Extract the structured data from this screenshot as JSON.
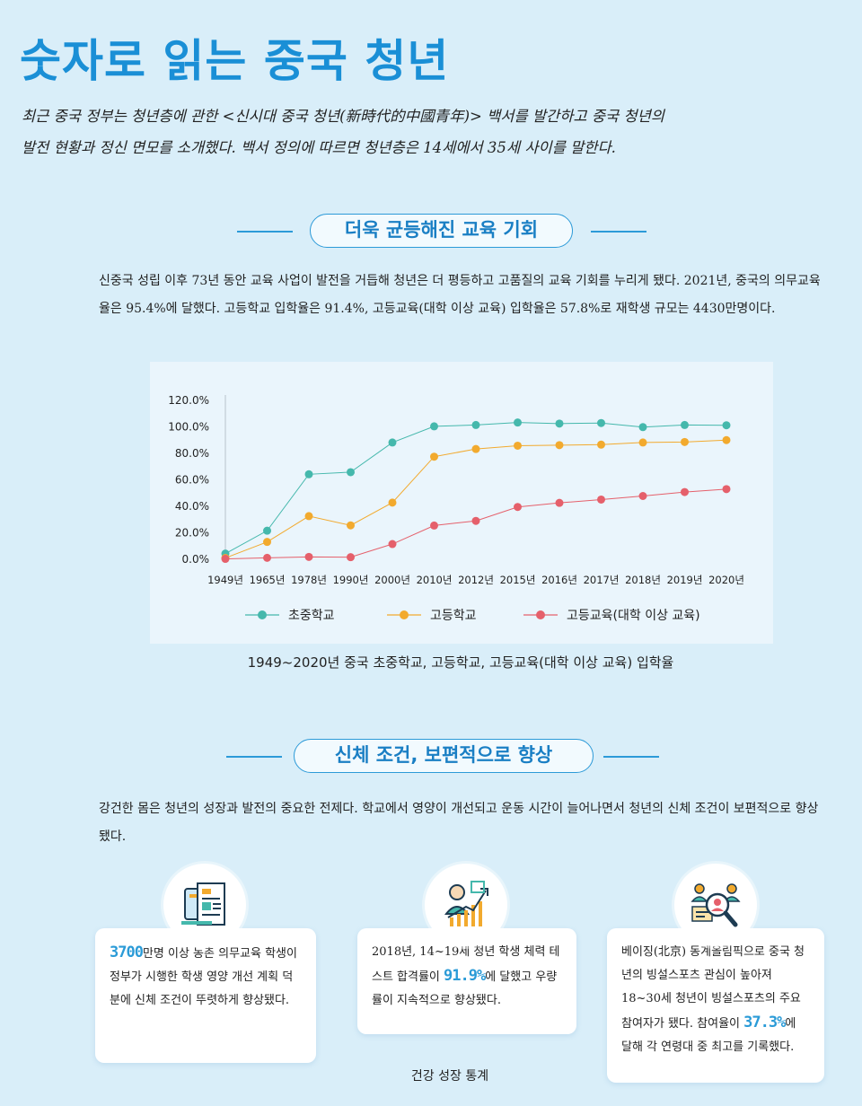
{
  "title": "숫자로 읽는 중국 청년",
  "intro": {
    "line1": "최근 중국 정부는 청년층에 관한 <신시대 중국 청년(新時代的中國青年)> 백서를 발간하고 중국 청년의",
    "line2": "발전 현황과 정신 면모를 소개했다. 백서 정의에 따르면 청년층은 14세에서 35세 사이를 말한다."
  },
  "section1": {
    "heading": "더욱 균등해진 교육 기회",
    "body": "신중국 성립 이후 73년 동안 교육 사업이 발전을 거듭해 청년은 더 평등하고 고품질의 교육 기회를 누리게 됐다. 2021년, 중국의 의무교육율은 95.4%에 달했다. 고등학교 입학율은 91.4%, 고등교육(대학 이상 교육) 입학율은 57.8%로 재학생 규모는 4430만명이다.",
    "caption": "1949~2020년 중국 초중학교, 고등학교, 고등교육(대학 이상 교육) 입학율"
  },
  "chart_data": {
    "type": "line",
    "categories": [
      "1949년",
      "1965년",
      "1978년",
      "1990년",
      "2000년",
      "2010년",
      "2012년",
      "2015년",
      "2016년",
      "2017년",
      "2018년",
      "2019년",
      "2020년"
    ],
    "y_ticks": [
      "120.0%",
      "100.0%",
      "80.0%",
      "60.0%",
      "40.0%",
      "20.0%",
      "0.0%"
    ],
    "ylim": [
      0,
      120
    ],
    "grid": false,
    "legend_position": "bottom",
    "series": [
      {
        "name": "초중학교",
        "color": "#45b8ac",
        "values": [
          4.3,
          21.6,
          64.2,
          65.8,
          88.2,
          100.4,
          101.4,
          103.3,
          102.5,
          102.9,
          99.8,
          101.4,
          101.2
        ]
      },
      {
        "name": "고등학교",
        "color": "#f2aa2e",
        "values": [
          1.0,
          13.1,
          32.6,
          25.6,
          42.8,
          77.5,
          83.3,
          85.8,
          86.2,
          86.6,
          88.2,
          88.6,
          90.0
        ]
      },
      {
        "name": "고등교육(대학 이상 교육)",
        "color": "#e5606b",
        "values": [
          0.3,
          1.1,
          1.8,
          1.6,
          11.5,
          25.5,
          29.0,
          39.5,
          42.6,
          45.1,
          47.8,
          50.8,
          53.0
        ]
      }
    ]
  },
  "section2": {
    "heading": "신체 조건, 보편적으로 향상",
    "body": "강건한 몸은 청년의 성장과 발전의 중요한 전제다. 학교에서 영양이 개선되고 운동 시간이 늘어나면서 청년의 신체 조건이 보편적으로 향상됐다."
  },
  "cards": [
    {
      "icon": "document-icon",
      "highlight": "3700",
      "text": "만명 이상 농촌 의무교육 학생이 정부가 시행한 학생 영양 개선 계획 덕분에 신체 조건이 뚜렷하게 향상됐다."
    },
    {
      "icon": "growth-chart-icon",
      "before": "2018년, 14~19세 청년 학생 체력 테스트 합격률이 ",
      "highlight": "91.9%",
      "after": "에 달했고 우량률이 지속적으로 향상됐다."
    },
    {
      "icon": "people-search-icon",
      "before": "베이징(北京) 동계올림픽으로 중국 청년의 빙설스포츠 관심이 높아져 18~30세 청년이 빙설스포츠의 주요 참여자가 됐다. 참여율이 ",
      "highlight": "37.3%",
      "after": "에 달해 각 연령대 중 최고를 기록했다."
    }
  ],
  "footer": "건강 성장 통계"
}
